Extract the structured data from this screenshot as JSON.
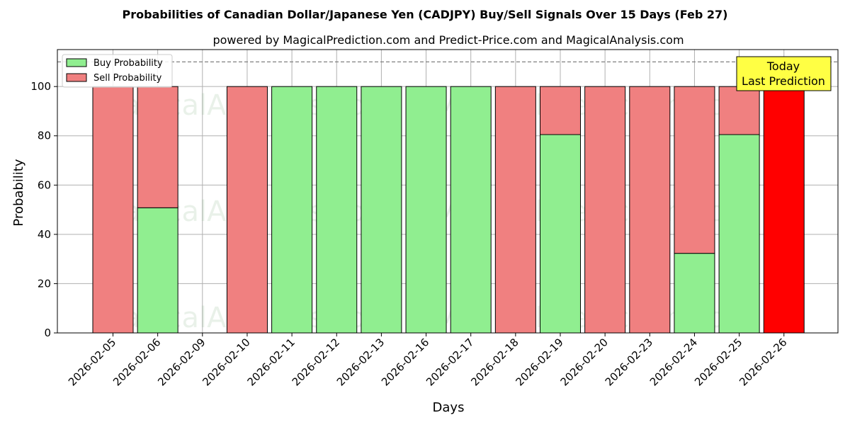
{
  "chart_data": {
    "type": "bar",
    "stacked": true,
    "title": "Probabilities of Canadian Dollar/Japanese Yen (CADJPY) Buy/Sell Signals Over 15 Days (Feb 27)",
    "subtitle": "powered by MagicalPrediction.com and Predict-Price.com and MagicalAnalysis.com",
    "xlabel": "Days",
    "ylabel": "Probability",
    "ylim": [
      0,
      115
    ],
    "yticks": [
      0,
      20,
      40,
      60,
      80,
      100
    ],
    "grid": true,
    "legend_position": "top-left",
    "reference_line": {
      "y": 110,
      "style": "dashed",
      "color": "#808080"
    },
    "categories": [
      "2026-02-05",
      "2026-02-06",
      "2026-02-09",
      "2026-02-10",
      "2026-02-11",
      "2026-02-12",
      "2026-02-13",
      "2026-02-16",
      "2026-02-17",
      "2026-02-18",
      "2026-02-19",
      "2026-02-20",
      "2026-02-23",
      "2026-02-24",
      "2026-02-25",
      "2026-02-26"
    ],
    "series": [
      {
        "name": "Buy Probability",
        "color": "#90ee90",
        "values": [
          0,
          50.8,
          0,
          0,
          100,
          100,
          100,
          100,
          100,
          0,
          80.5,
          0,
          0,
          32.3,
          80.5,
          0
        ]
      },
      {
        "name": "Sell Probability",
        "color": "#f08080",
        "values": [
          100,
          49.2,
          0,
          100,
          0,
          0,
          0,
          0,
          0,
          100,
          19.5,
          100,
          100,
          67.7,
          19.5,
          100
        ]
      }
    ],
    "highlight": {
      "index": 15,
      "color": "#ff0000"
    },
    "annotation": {
      "lines": [
        "Today",
        "Last Prediction"
      ],
      "background": "#ffff44"
    },
    "watermarks": [
      "MagicalAnalysis.com",
      "MagicalPrediction.com"
    ]
  }
}
